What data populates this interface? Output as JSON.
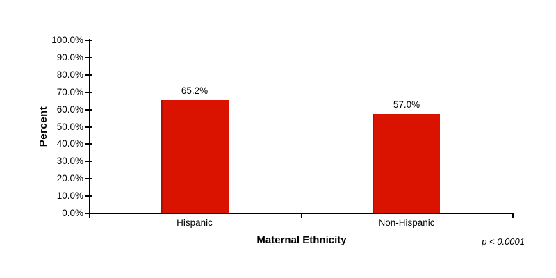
{
  "chart_data": {
    "type": "bar",
    "categories": [
      "Hispanic",
      "Non-Hispanic"
    ],
    "values": [
      65.2,
      57.0
    ],
    "value_labels": [
      "65.2%",
      "57.0%"
    ],
    "title": "",
    "xlabel": "Maternal Ethnicity",
    "ylabel": "Percent",
    "ylim": [
      0,
      100
    ],
    "ytick_step": 10,
    "ytick_labels": [
      "0.0%",
      "10.0%",
      "20.0%",
      "30.0%",
      "40.0%",
      "50.0%",
      "60.0%",
      "70.0%",
      "80.0%",
      "90.0%",
      "100.0%"
    ],
    "annotation": "p < 0.0001",
    "legend_position": "none",
    "grid": false,
    "colors": {
      "bar_fill": "#da1200",
      "bar_left_edge": "#b00e00",
      "axis": "#000000",
      "text": "#000000",
      "background": "#ffffff"
    }
  }
}
